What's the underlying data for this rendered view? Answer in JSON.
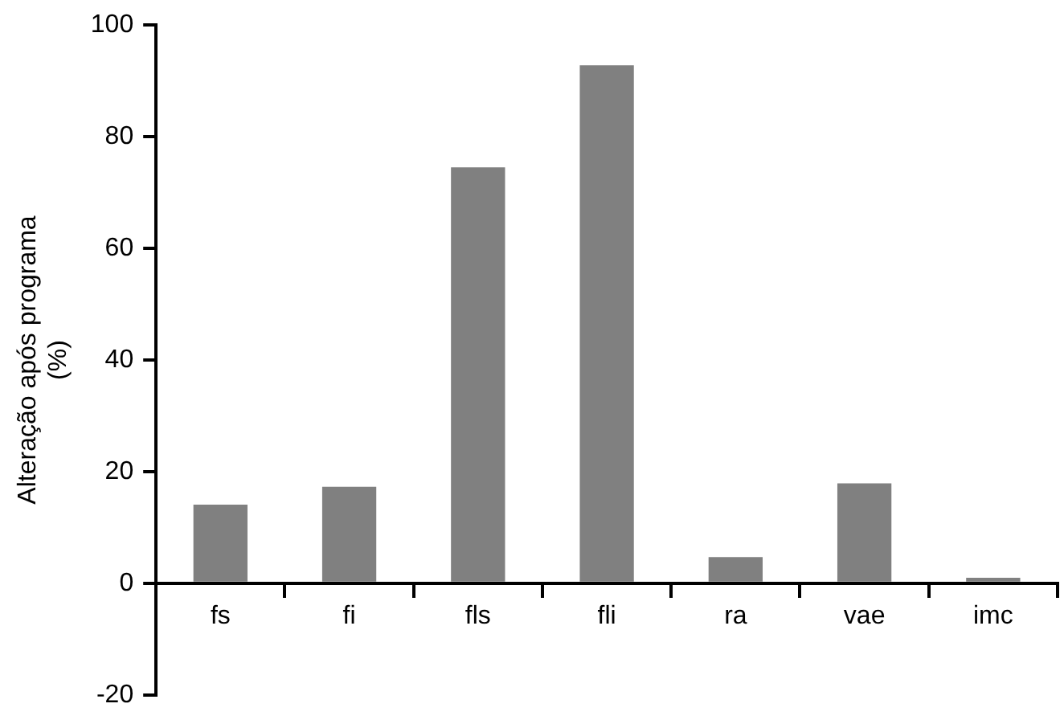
{
  "chart_data": {
    "type": "bar",
    "ylabel": "Alteração após programa (%)",
    "categories": [
      "fs",
      "fi",
      "fls",
      "fli",
      "ra",
      "vae",
      "imc"
    ],
    "values": [
      14.1,
      17.3,
      74.5,
      92.8,
      4.7,
      17.9,
      1.0
    ],
    "color": "#808080",
    "ylim": [
      -20,
      100
    ],
    "yticks": [
      -20,
      0,
      20,
      40,
      60,
      80,
      100
    ],
    "grid": false,
    "legend": false
  }
}
